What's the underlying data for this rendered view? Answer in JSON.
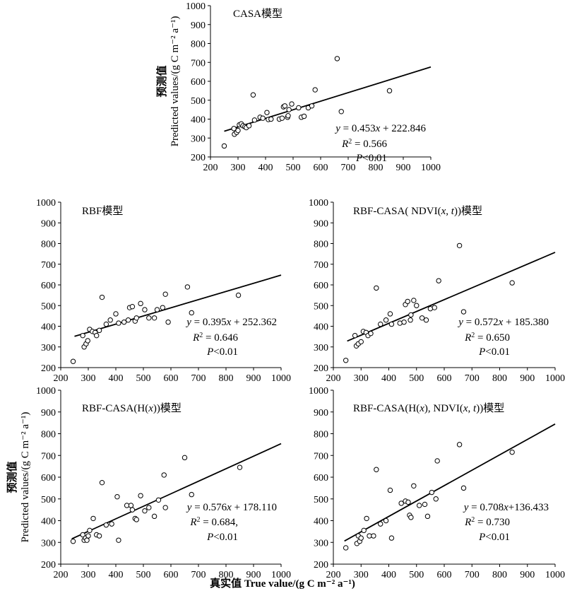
{
  "figure": {
    "shared_ylabel_cn": "预测值",
    "shared_ylabel_en": "Predicted values/(g C m⁻² a⁻¹)",
    "shared_xlabel": "真实值 True value/(g C m⁻² a⁻¹)"
  },
  "chart_data": [
    {
      "type": "scatter",
      "title": "CASA模型",
      "xlim": [
        200,
        1000
      ],
      "ylim": [
        200,
        1000
      ],
      "x_ticks": [
        200,
        300,
        400,
        500,
        600,
        700,
        800,
        900,
        1000
      ],
      "y_ticks": [
        200,
        300,
        400,
        500,
        600,
        700,
        800,
        900,
        1000
      ],
      "ylabel_cn": "预测值",
      "ylabel_en": "Predicted values/(g C m⁻² a⁻¹)",
      "points": [
        [
          250,
          258
        ],
        [
          285,
          350
        ],
        [
          287,
          320
        ],
        [
          295,
          330
        ],
        [
          300,
          340
        ],
        [
          305,
          370
        ],
        [
          312,
          375
        ],
        [
          318,
          365
        ],
        [
          325,
          360
        ],
        [
          330,
          355
        ],
        [
          340,
          365
        ],
        [
          355,
          528
        ],
        [
          360,
          395
        ],
        [
          380,
          410
        ],
        [
          390,
          405
        ],
        [
          405,
          435
        ],
        [
          410,
          398
        ],
        [
          420,
          400
        ],
        [
          450,
          400
        ],
        [
          460,
          405
        ],
        [
          465,
          465
        ],
        [
          470,
          470
        ],
        [
          480,
          410
        ],
        [
          482,
          418
        ],
        [
          485,
          450
        ],
        [
          495,
          480
        ],
        [
          520,
          460
        ],
        [
          530,
          410
        ],
        [
          540,
          415
        ],
        [
          555,
          460
        ],
        [
          568,
          470
        ],
        [
          580,
          555
        ],
        [
          660,
          720
        ],
        [
          675,
          440
        ],
        [
          850,
          550
        ]
      ],
      "fit": {
        "slope": 0.453,
        "intercept": 222.846,
        "x_range": [
          250,
          1000
        ]
      },
      "equation": "y = 0.453x + 222.846",
      "r2": "R² = 0.566",
      "p": "P<0.01"
    },
    {
      "type": "scatter",
      "title": "RBF模型",
      "xlim": [
        200,
        1000
      ],
      "ylim": [
        200,
        1000
      ],
      "x_ticks": [
        200,
        300,
        400,
        500,
        600,
        700,
        800,
        900,
        1000
      ],
      "y_ticks": [
        200,
        300,
        400,
        500,
        600,
        700,
        800,
        900,
        1000
      ],
      "points": [
        [
          245,
          230
        ],
        [
          280,
          355
        ],
        [
          285,
          300
        ],
        [
          292,
          315
        ],
        [
          298,
          330
        ],
        [
          305,
          385
        ],
        [
          315,
          375
        ],
        [
          325,
          370
        ],
        [
          330,
          355
        ],
        [
          340,
          380
        ],
        [
          350,
          540
        ],
        [
          365,
          410
        ],
        [
          380,
          430
        ],
        [
          400,
          460
        ],
        [
          410,
          415
        ],
        [
          430,
          420
        ],
        [
          445,
          430
        ],
        [
          450,
          490
        ],
        [
          460,
          495
        ],
        [
          470,
          425
        ],
        [
          475,
          440
        ],
        [
          490,
          510
        ],
        [
          505,
          480
        ],
        [
          520,
          440
        ],
        [
          540,
          440
        ],
        [
          550,
          480
        ],
        [
          570,
          490
        ],
        [
          580,
          555
        ],
        [
          590,
          420
        ],
        [
          660,
          590
        ],
        [
          675,
          465
        ],
        [
          845,
          550
        ]
      ],
      "fit": {
        "slope": 0.395,
        "intercept": 252.362,
        "x_range": [
          250,
          1000
        ]
      },
      "equation": "y = 0.395x + 252.362",
      "r2": "R² = 0.646",
      "p": "P<0.01"
    },
    {
      "type": "scatter",
      "title": "RBF-CASA( NDVI(x, t))模型",
      "xlim": [
        200,
        1000
      ],
      "ylim": [
        200,
        1000
      ],
      "x_ticks": [
        200,
        300,
        400,
        500,
        600,
        700,
        800,
        900,
        1000
      ],
      "y_ticks": [
        200,
        300,
        400,
        500,
        600,
        700,
        800,
        900,
        1000
      ],
      "points": [
        [
          245,
          235
        ],
        [
          278,
          355
        ],
        [
          283,
          305
        ],
        [
          290,
          315
        ],
        [
          300,
          325
        ],
        [
          308,
          375
        ],
        [
          318,
          370
        ],
        [
          325,
          355
        ],
        [
          335,
          365
        ],
        [
          355,
          585
        ],
        [
          370,
          410
        ],
        [
          390,
          430
        ],
        [
          405,
          460
        ],
        [
          410,
          410
        ],
        [
          440,
          415
        ],
        [
          455,
          420
        ],
        [
          460,
          505
        ],
        [
          468,
          520
        ],
        [
          478,
          430
        ],
        [
          480,
          455
        ],
        [
          490,
          525
        ],
        [
          500,
          500
        ],
        [
          520,
          440
        ],
        [
          535,
          430
        ],
        [
          550,
          485
        ],
        [
          565,
          490
        ],
        [
          580,
          620
        ],
        [
          655,
          790
        ],
        [
          670,
          470
        ],
        [
          845,
          610
        ]
      ],
      "fit": {
        "slope": 0.572,
        "intercept": 185.38,
        "x_range": [
          250,
          1000
        ]
      },
      "equation": "y = 0.572x + 185.380",
      "r2": "R² = 0.650",
      "p": "P<0.01"
    },
    {
      "type": "scatter",
      "title": "RBF-CASA(H(x))模型",
      "xlim": [
        200,
        1000
      ],
      "ylim": [
        200,
        1000
      ],
      "x_ticks": [
        200,
        300,
        400,
        500,
        600,
        700,
        800,
        900,
        1000
      ],
      "y_ticks": [
        200,
        300,
        400,
        500,
        600,
        700,
        800,
        900,
        1000
      ],
      "ylabel_cn": "预测值",
      "ylabel_en": "Predicted values/(g C m⁻² a⁻¹)",
      "points": [
        [
          245,
          305
        ],
        [
          280,
          335
        ],
        [
          285,
          310
        ],
        [
          290,
          320
        ],
        [
          295,
          310
        ],
        [
          300,
          330
        ],
        [
          305,
          355
        ],
        [
          318,
          410
        ],
        [
          330,
          335
        ],
        [
          340,
          330
        ],
        [
          350,
          575
        ],
        [
          365,
          380
        ],
        [
          385,
          385
        ],
        [
          405,
          510
        ],
        [
          410,
          310
        ],
        [
          440,
          470
        ],
        [
          455,
          470
        ],
        [
          460,
          450
        ],
        [
          470,
          410
        ],
        [
          475,
          405
        ],
        [
          490,
          515
        ],
        [
          505,
          445
        ],
        [
          520,
          460
        ],
        [
          540,
          420
        ],
        [
          555,
          495
        ],
        [
          575,
          610
        ],
        [
          580,
          460
        ],
        [
          650,
          690
        ],
        [
          675,
          520
        ],
        [
          850,
          645
        ]
      ],
      "fit": {
        "slope": 0.576,
        "intercept": 178.11,
        "x_range": [
          240,
          1000
        ]
      },
      "equation": "y = 0.576x + 178.110",
      "r2": "R² = 0.684,",
      "p": "P<0.01"
    },
    {
      "type": "scatter",
      "title": "RBF-CASA(H(x), NDVI(x, t))模型",
      "xlim": [
        200,
        1000
      ],
      "ylim": [
        200,
        1000
      ],
      "x_ticks": [
        200,
        300,
        400,
        500,
        600,
        700,
        800,
        900,
        1000
      ],
      "y_ticks": [
        200,
        300,
        400,
        500,
        600,
        700,
        800,
        900,
        1000
      ],
      "points": [
        [
          245,
          275
        ],
        [
          285,
          295
        ],
        [
          290,
          330
        ],
        [
          295,
          305
        ],
        [
          300,
          320
        ],
        [
          310,
          355
        ],
        [
          320,
          410
        ],
        [
          330,
          330
        ],
        [
          345,
          330
        ],
        [
          355,
          635
        ],
        [
          370,
          385
        ],
        [
          390,
          400
        ],
        [
          405,
          540
        ],
        [
          410,
          320
        ],
        [
          445,
          480
        ],
        [
          460,
          490
        ],
        [
          470,
          485
        ],
        [
          475,
          425
        ],
        [
          480,
          415
        ],
        [
          490,
          560
        ],
        [
          510,
          470
        ],
        [
          530,
          475
        ],
        [
          540,
          420
        ],
        [
          555,
          530
        ],
        [
          570,
          500
        ],
        [
          575,
          675
        ],
        [
          655,
          750
        ],
        [
          670,
          550
        ],
        [
          845,
          715
        ]
      ],
      "fit": {
        "slope": 0.708,
        "intercept": 136.433,
        "x_range": [
          240,
          1000
        ]
      },
      "equation": "y = 0.708x+136.433",
      "r2": "R² = 0.730",
      "p": "P<0.01"
    }
  ]
}
